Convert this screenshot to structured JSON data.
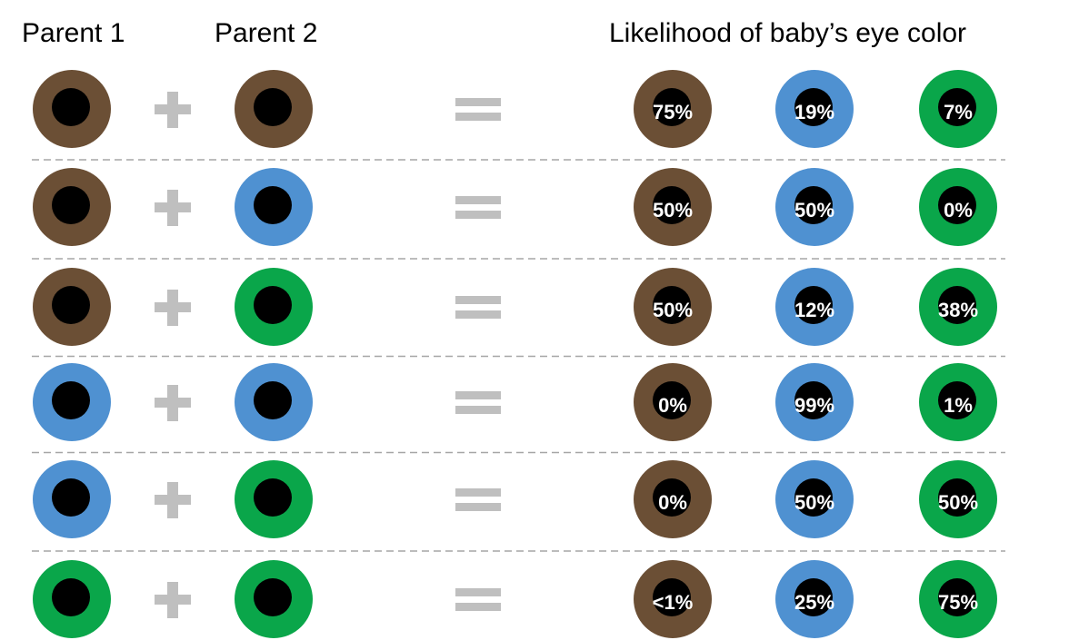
{
  "header": {
    "parent1": "Parent 1",
    "parent2": "Parent 2",
    "likelihood": "Likelihood of baby’s eye color"
  },
  "outcome_colors": [
    "#6b4f35",
    "#4f91d1",
    "#0aa64a"
  ],
  "rows": [
    {
      "parent1_color": "#6b4f35",
      "parent2_color": "#6b4f35",
      "likelihood": [
        "75%",
        "19%",
        "7%"
      ]
    },
    {
      "parent1_color": "#6b4f35",
      "parent2_color": "#4f91d1",
      "likelihood": [
        "50%",
        "50%",
        "0%"
      ]
    },
    {
      "parent1_color": "#6b4f35",
      "parent2_color": "#0aa64a",
      "likelihood": [
        "50%",
        "12%",
        "38%"
      ]
    },
    {
      "parent1_color": "#4f91d1",
      "parent2_color": "#4f91d1",
      "likelihood": [
        "0%",
        "99%",
        "1%"
      ]
    },
    {
      "parent1_color": "#4f91d1",
      "parent2_color": "#0aa64a",
      "likelihood": [
        "0%",
        "50%",
        "50%"
      ]
    },
    {
      "parent1_color": "#0aa64a",
      "parent2_color": "#0aa64a",
      "likelihood": [
        "<1%",
        "25%",
        "75%"
      ]
    }
  ]
}
